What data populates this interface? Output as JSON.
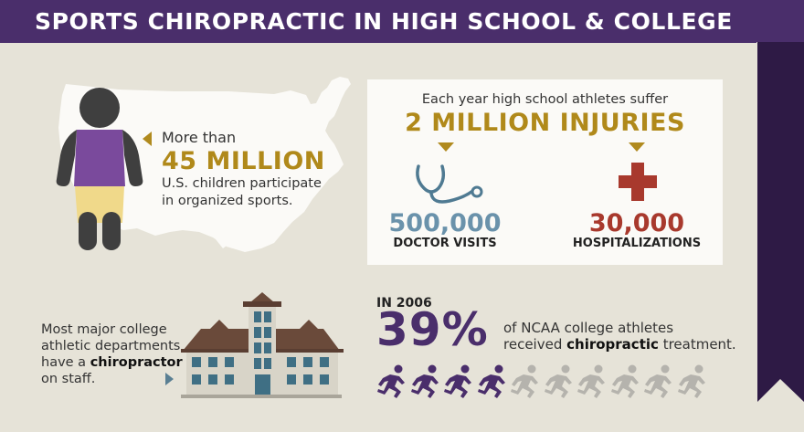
{
  "title": "SPORTS CHIROPRACTIC IN HIGH SCHOOL & COLLEGE",
  "participation": {
    "prefix": "More than",
    "number": "45 MILLION",
    "description": "U.S. children participate in organized sports."
  },
  "injuries": {
    "intro": "Each year high school athletes suffer",
    "headline": "2 MILLION INJURIES",
    "doctor_visits": {
      "value": "500,000",
      "label": "DOCTOR VISITS"
    },
    "hospitalizations": {
      "value": "30,000",
      "label": "HOSPITALIZATIONS"
    }
  },
  "staff": {
    "text_before": "Most major college athletic departments have a",
    "emphasis": "chiropractor",
    "text_after": "on staff."
  },
  "ncaa": {
    "year_label": "IN 2006",
    "percent": "39%",
    "line1": "of NCAA college athletes",
    "line2_before": "received",
    "line2_emphasis": "chiropractic",
    "line2_after": "treatment.",
    "runners_total": 10,
    "runners_highlighted": 4
  },
  "colors": {
    "banner": "#4a2e6b",
    "background": "#e6e3d8",
    "gold": "#b0891a",
    "blue": "#6a92ab",
    "red": "#a8392d",
    "purple": "#4a2e6b",
    "runner_inactive": "#b5b3ad"
  },
  "icons": [
    "usa-map-icon",
    "child-athlete-icon",
    "stethoscope-icon",
    "medical-cross-icon",
    "college-building-icon",
    "runner-icon"
  ]
}
